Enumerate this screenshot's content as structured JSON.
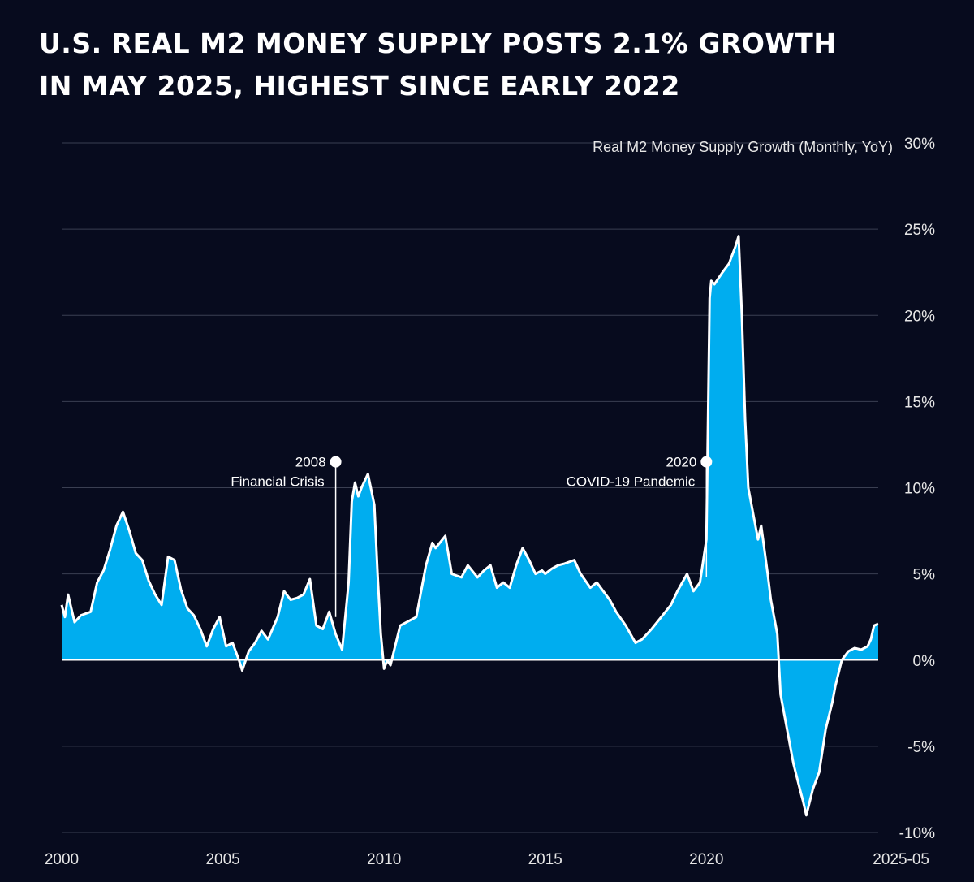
{
  "header": {
    "title_line1": "U.S. REAL M2 MONEY SUPPLY POSTS 2.1% GROWTH",
    "title_line2": "IN MAY 2025, HIGHEST SINCE EARLY 2022"
  },
  "colors": {
    "background": "#070b1e",
    "fill": "#00adef",
    "line": "#ffffff",
    "grid": "#3a3f52"
  },
  "chart_data": {
    "type": "area",
    "title": "U.S. REAL M2 MONEY SUPPLY POSTS 2.1% GROWTH IN MAY 2025, HIGHEST SINCE EARLY 2022",
    "ylabel": "Real M2 Money Supply Growth (Monthly, YoY)",
    "xlabel": "",
    "ylim": [
      -10,
      30
    ],
    "xlim": [
      2000.0,
      2025.33
    ],
    "grid": true,
    "y_ticks": [
      "30%",
      "25%",
      "20%",
      "15%",
      "10%",
      "5%",
      "0%",
      "-5%",
      "-10%"
    ],
    "x_ticks": [
      "2000",
      "2005",
      "2010",
      "2015",
      "2020",
      "2025-05"
    ],
    "annotations": [
      {
        "year": "2008",
        "text": "Financial Crisis",
        "x": 2008.5,
        "y": 11.5
      },
      {
        "year": "2020",
        "text": "COVID-19 Pandemic",
        "x": 2020.0,
        "y": 11.5
      }
    ],
    "series": [
      {
        "x": [
          2000.0,
          2000.1,
          2000.2,
          2000.4,
          2000.6,
          2000.9,
          2001.1,
          2001.3,
          2001.5,
          2001.7,
          2001.9,
          2002.1,
          2002.3,
          2002.5,
          2002.7,
          2002.9,
          2003.1,
          2003.3,
          2003.5,
          2003.7,
          2003.9,
          2004.1,
          2004.3,
          2004.5,
          2004.7,
          2004.9,
          2005.1,
          2005.3,
          2005.5,
          2005.6,
          2005.8,
          2006.0,
          2006.2,
          2006.4,
          2006.7,
          2006.9,
          2007.1,
          2007.3,
          2007.5,
          2007.7,
          2007.9,
          2008.1,
          2008.3,
          2008.5,
          2008.7,
          2008.9,
          2009.0,
          2009.1,
          2009.2,
          2009.3,
          2009.5,
          2009.7,
          2009.8,
          2009.9,
          2010.0,
          2010.1,
          2010.2,
          2010.5,
          2010.7,
          2011.0,
          2011.3,
          2011.5,
          2011.6,
          2011.9,
          2012.1,
          2012.4,
          2012.6,
          2012.9,
          2013.1,
          2013.3,
          2013.5,
          2013.7,
          2013.9,
          2014.1,
          2014.3,
          2014.5,
          2014.7,
          2014.9,
          2015.0,
          2015.2,
          2015.4,
          2015.6,
          2015.9,
          2016.1,
          2016.4,
          2016.6,
          2016.8,
          2017.0,
          2017.2,
          2017.5,
          2017.8,
          2018.0,
          2018.3,
          2018.6,
          2018.9,
          2019.1,
          2019.4,
          2019.6,
          2019.8,
          2020.0,
          2020.1,
          2020.15,
          2020.25,
          2020.5,
          2020.7,
          2020.9,
          2021.0,
          2021.1,
          2021.2,
          2021.3,
          2021.5,
          2021.6,
          2021.7,
          2021.9,
          2022.0,
          2022.2,
          2022.3,
          2022.5,
          2022.7,
          2022.9,
          2023.0,
          2023.1,
          2023.3,
          2023.5,
          2023.7,
          2023.9,
          2024.0,
          2024.2,
          2024.4,
          2024.6,
          2024.8,
          2025.0,
          2025.1,
          2025.2,
          2025.33
        ],
        "values": [
          3.2,
          2.5,
          3.8,
          2.2,
          2.6,
          2.8,
          4.5,
          5.2,
          6.4,
          7.8,
          8.6,
          7.5,
          6.2,
          5.8,
          4.6,
          3.8,
          3.2,
          6.0,
          5.8,
          4.1,
          3.0,
          2.6,
          1.8,
          0.8,
          1.8,
          2.5,
          0.8,
          1.0,
          0.0,
          -0.6,
          0.5,
          1.0,
          1.7,
          1.2,
          2.5,
          4.0,
          3.5,
          3.6,
          3.8,
          4.7,
          2.0,
          1.8,
          2.8,
          1.5,
          0.6,
          4.5,
          9.2,
          10.3,
          9.5,
          10.0,
          10.8,
          9.0,
          5.0,
          1.5,
          -0.5,
          0.0,
          -0.3,
          2.0,
          2.2,
          2.5,
          5.5,
          6.8,
          6.5,
          7.2,
          5.0,
          4.8,
          5.5,
          4.8,
          5.2,
          5.5,
          4.2,
          4.5,
          4.2,
          5.5,
          6.5,
          5.8,
          5.0,
          5.2,
          5.0,
          5.3,
          5.5,
          5.6,
          5.8,
          5.0,
          4.2,
          4.5,
          4.0,
          3.5,
          2.8,
          2.0,
          1.0,
          1.2,
          1.8,
          2.5,
          3.2,
          4.0,
          5.0,
          4.0,
          4.5,
          7.0,
          21.0,
          22.0,
          21.8,
          22.5,
          23.0,
          24.0,
          24.6,
          20.0,
          14.0,
          10.0,
          8.0,
          7.0,
          7.8,
          5.0,
          3.5,
          1.5,
          -2.0,
          -4.0,
          -6.0,
          -7.5,
          -8.2,
          -9.0,
          -7.5,
          -6.5,
          -4.0,
          -2.5,
          -1.5,
          0.0,
          0.5,
          0.7,
          0.6,
          0.8,
          1.2,
          2.0,
          2.1
        ]
      }
    ]
  }
}
